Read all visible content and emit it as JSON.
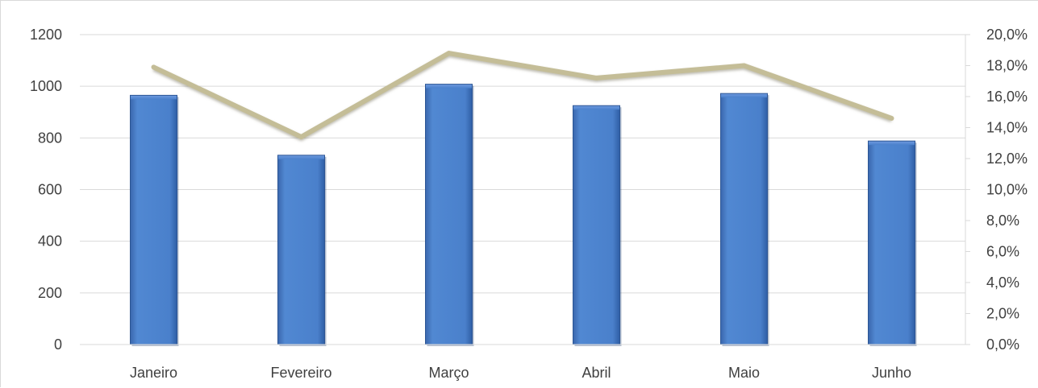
{
  "chart_data": {
    "type": "bar",
    "categories": [
      "Janeiro",
      "Fevereiro",
      "Março",
      "Abril",
      "Maio",
      "Junho"
    ],
    "series": [
      {
        "kind": "bar",
        "axis": "left",
        "values": [
          965,
          733,
          1008,
          925,
          972,
          788
        ]
      },
      {
        "kind": "line",
        "axis": "right",
        "values": [
          0.179,
          0.134,
          0.188,
          0.172,
          0.18,
          0.146
        ]
      }
    ],
    "y_left": {
      "ylim": [
        0,
        1200
      ],
      "ticks": [
        "0",
        "200",
        "400",
        "600",
        "800",
        "1000",
        "1200"
      ]
    },
    "y_right": {
      "ylim": [
        0,
        0.2
      ],
      "ticks": [
        "0,0%",
        "2,0%",
        "4,0%",
        "6,0%",
        "8,0%",
        "10,0%",
        "12,0%",
        "14,0%",
        "16,0%",
        "18,0%",
        "20,0%"
      ]
    },
    "grid": true,
    "legend": "none",
    "colors": {
      "bar": "#4a7fc8",
      "bar_dark": "#2f5da4",
      "line": "#c4bd97",
      "grid": "#d9d9d9",
      "text": "#404040"
    }
  }
}
